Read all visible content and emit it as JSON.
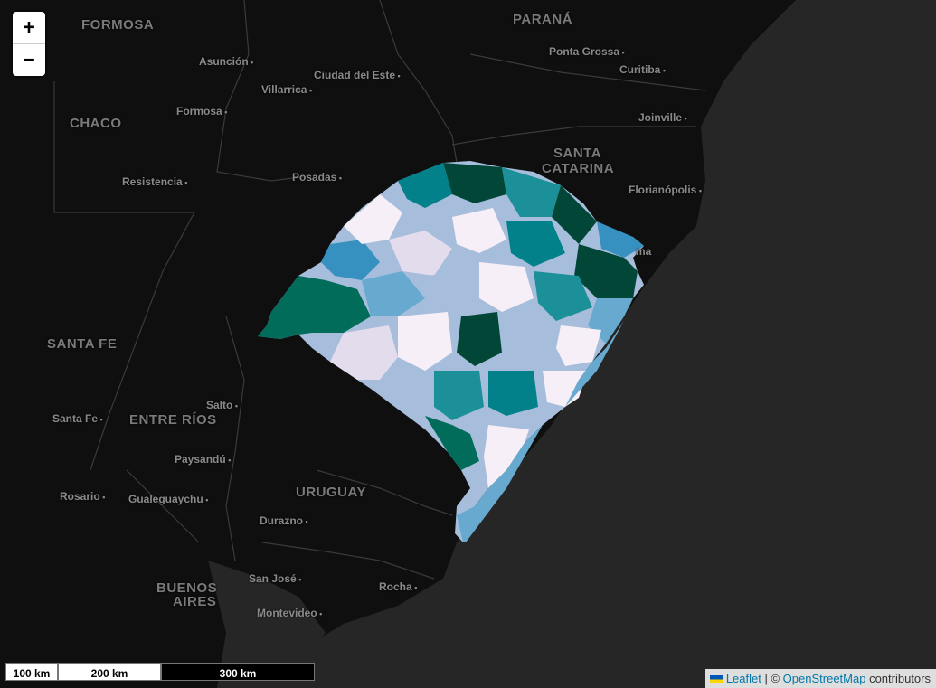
{
  "map": {
    "labels": {
      "formosa_region": "FORMOSA",
      "parana": "PARANÁ",
      "asuncion": "Asunción",
      "ciudad_del_este": "Ciudad del Este",
      "ponta_grossa": "Ponta Grossa",
      "curitiba": "Curitiba",
      "villarrica": "Villarrica",
      "chaco": "CHACO",
      "formosa_city": "Formosa",
      "joinville": "Joinville",
      "santa_catarina_1": "SANTA",
      "santa_catarina_2": "CATARINA",
      "resistencia": "Resistencia",
      "posadas": "Posadas",
      "florianopolis": "Florianópolis",
      "santa_fe_region": "SANTA FE",
      "salto": "Salto",
      "santa_fe_city": "Santa Fe",
      "entre_rios": "ENTRE RÍOS",
      "paysandu": "Paysandú",
      "uruguay": "URUGUAY",
      "rosario": "Rosario",
      "gualeguaychu": "Gualeguaychu",
      "durazno": "Durazno",
      "buenos_1": "BUENOS",
      "buenos_2": "AIRES",
      "san_jose": "San José",
      "rocha": "Rocha",
      "montevideo": "Montevideo",
      "tramandai_frag": "ma"
    },
    "choropleth_colors": [
      "#f6eff7",
      "#e2dcec",
      "#a6bddb",
      "#67a9cf",
      "#3690c0",
      "#1c9099",
      "#02818a",
      "#016c59",
      "#014636"
    ],
    "background_color": "#0f0f0f",
    "ocean_color": "#262626"
  },
  "controls": {
    "zoom_in": "+",
    "zoom_out": "−"
  },
  "scale": {
    "seg1": "100 km",
    "seg2": "200 km",
    "seg3": "300 km"
  },
  "attribution": {
    "leaflet": "Leaflet",
    "separator": " | © ",
    "osm": "OpenStreetMap",
    "suffix": " contributors"
  }
}
